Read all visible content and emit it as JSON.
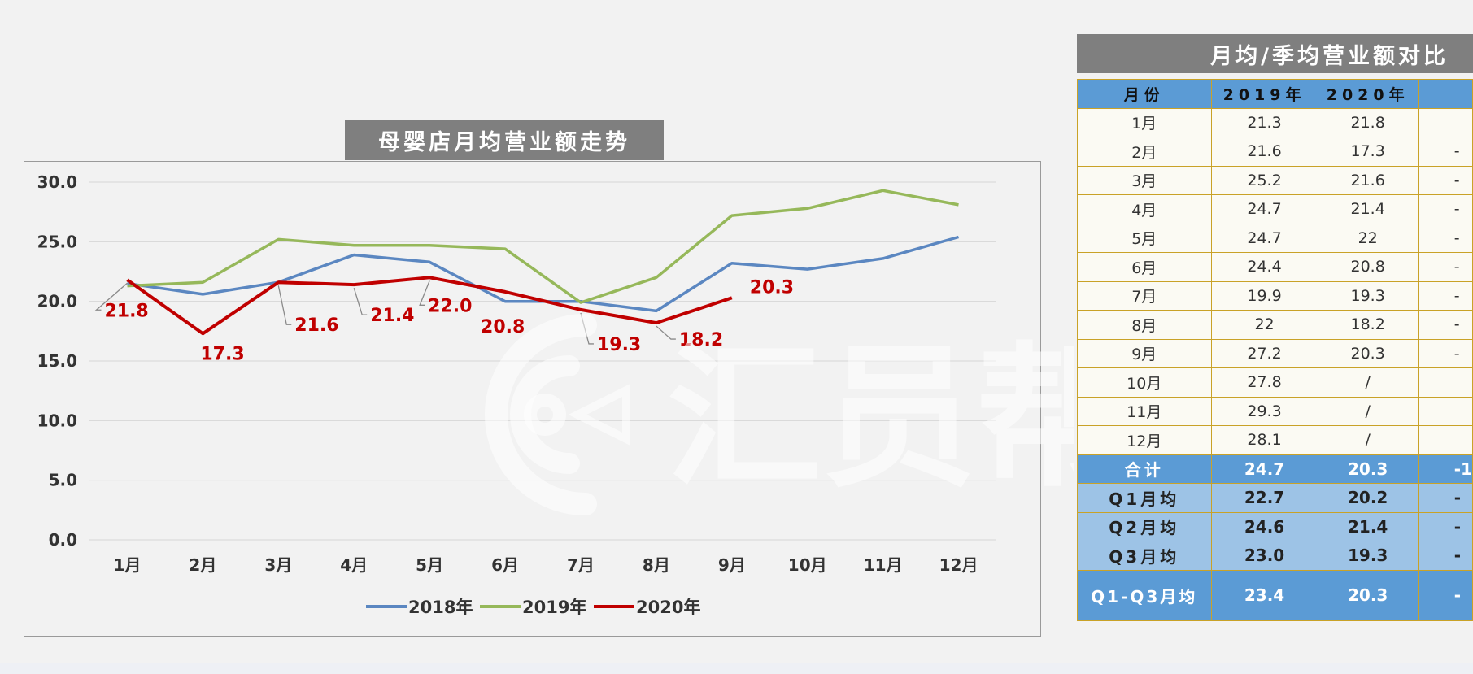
{
  "chart_data": {
    "type": "line",
    "title": "母婴店月均营业额走势",
    "categories": [
      "1月",
      "2月",
      "3月",
      "4月",
      "5月",
      "6月",
      "7月",
      "8月",
      "9月",
      "10月",
      "11月",
      "12月"
    ],
    "yticks": [
      "30.0",
      "25.0",
      "20.0",
      "15.0",
      "10.0",
      "5.0",
      "0.0"
    ],
    "ylim": [
      0,
      30
    ],
    "grid": true,
    "legend_position": "bottom",
    "series": [
      {
        "name": "2018年",
        "color": "#5b87c1",
        "values": [
          21.5,
          20.6,
          21.6,
          23.9,
          23.3,
          20.0,
          20.0,
          19.2,
          23.2,
          22.7,
          23.6,
          25.4
        ]
      },
      {
        "name": "2019年",
        "color": "#96b85a",
        "values": [
          21.3,
          21.6,
          25.2,
          24.7,
          24.7,
          24.4,
          19.9,
          22.0,
          27.2,
          27.8,
          29.3,
          28.1
        ]
      },
      {
        "name": "2020年",
        "color": "#c00000",
        "values": [
          21.8,
          17.3,
          21.6,
          21.4,
          22.0,
          20.8,
          19.3,
          18.2,
          20.3,
          null,
          null,
          null
        ]
      }
    ],
    "data_labels": [
      "21.8",
      "17.3",
      "21.6",
      "21.4",
      "22.0",
      "20.8",
      "19.3",
      "18.2",
      "20.3"
    ]
  },
  "table": {
    "title": "月均/季均营业额对比",
    "headers": [
      "月份",
      "2019年",
      "2020年",
      ""
    ],
    "rows": [
      [
        "1月",
        "21.3",
        "21.8",
        ""
      ],
      [
        "2月",
        "21.6",
        "17.3",
        "-"
      ],
      [
        "3月",
        "25.2",
        "21.6",
        "-"
      ],
      [
        "4月",
        "24.7",
        "21.4",
        "-"
      ],
      [
        "5月",
        "24.7",
        "22",
        "-"
      ],
      [
        "6月",
        "24.4",
        "20.8",
        "-"
      ],
      [
        "7月",
        "19.9",
        "19.3",
        "-"
      ],
      [
        "8月",
        "22",
        "18.2",
        "-"
      ],
      [
        "9月",
        "27.2",
        "20.3",
        "-"
      ],
      [
        "10月",
        "27.8",
        "/",
        ""
      ],
      [
        "11月",
        "29.3",
        "/",
        ""
      ],
      [
        "12月",
        "28.1",
        "/",
        ""
      ]
    ],
    "total": [
      "合计",
      "24.7",
      "20.3",
      "-1"
    ],
    "quarters": [
      [
        "Q1月均",
        "22.7",
        "20.2",
        "-"
      ],
      [
        "Q2月均",
        "24.6",
        "21.4",
        "-"
      ],
      [
        "Q3月均",
        "23.0",
        "19.3",
        "-"
      ]
    ],
    "q_all": [
      "Q1-Q3月均",
      "23.4",
      "20.3",
      "-"
    ]
  },
  "watermark": "汇员帮"
}
